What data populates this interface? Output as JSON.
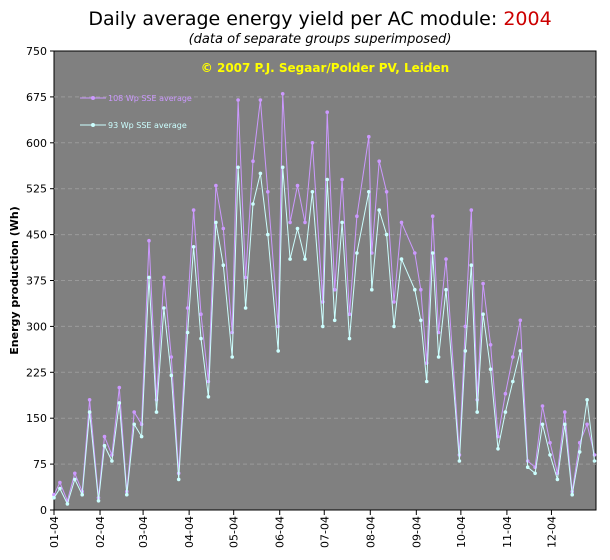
{
  "header": {
    "title_prefix": "Daily average energy yield per AC module: ",
    "title_year": "2004",
    "subtitle": "(data of separate groups superimposed)"
  },
  "chart_data": {
    "type": "line",
    "copyright": "© 2007 P.J. Segaar/Polder PV, Leiden",
    "ylabel": "Energy production (Wh)",
    "xlabel": "",
    "ylim": [
      0,
      750
    ],
    "yticks": [
      0,
      75,
      150,
      225,
      300,
      375,
      450,
      525,
      600,
      675,
      750
    ],
    "xlim": [
      1,
      366
    ],
    "month_ticks": [
      {
        "label": "01-04",
        "day": 1
      },
      {
        "label": "02-04",
        "day": 32
      },
      {
        "label": "03-04",
        "day": 61
      },
      {
        "label": "04-04",
        "day": 92
      },
      {
        "label": "05-04",
        "day": 122
      },
      {
        "label": "06-04",
        "day": 153
      },
      {
        "label": "07-04",
        "day": 183
      },
      {
        "label": "08-04",
        "day": 214
      },
      {
        "label": "09-04",
        "day": 245
      },
      {
        "label": "10-04",
        "day": 275
      },
      {
        "label": "11-04",
        "day": 306
      },
      {
        "label": "12-04",
        "day": 336
      }
    ],
    "grid": true,
    "legend_position": "top-left",
    "colors": {
      "plot_bg": "#808080",
      "gridline": "#9a9a9a",
      "series_108": "#cc99ff",
      "series_93": "#ccffff",
      "copyright_text": "#ffff00",
      "title_year": "#cc0000"
    },
    "series": [
      {
        "name": "108 Wp SSE average",
        "color": "#cc99ff",
        "x": [
          1,
          5,
          10,
          15,
          20,
          25,
          31,
          35,
          40,
          45,
          50,
          55,
          60,
          65,
          70,
          75,
          80,
          85,
          91,
          95,
          100,
          105,
          110,
          115,
          121,
          125,
          130,
          135,
          140,
          145,
          152,
          155,
          160,
          165,
          170,
          175,
          182,
          185,
          190,
          195,
          200,
          205,
          213,
          215,
          220,
          225,
          230,
          235,
          244,
          248,
          252,
          256,
          260,
          265,
          274,
          278,
          282,
          286,
          290,
          295,
          300,
          305,
          310,
          315,
          320,
          325,
          330,
          335,
          340,
          345,
          350,
          355,
          360,
          365
        ],
        "values": [
          25,
          45,
          15,
          60,
          30,
          180,
          20,
          120,
          90,
          200,
          30,
          160,
          140,
          440,
          180,
          380,
          250,
          60,
          330,
          490,
          320,
          210,
          530,
          460,
          290,
          670,
          380,
          570,
          670,
          520,
          300,
          680,
          470,
          530,
          470,
          600,
          340,
          650,
          360,
          540,
          320,
          480,
          610,
          420,
          570,
          520,
          340,
          470,
          420,
          360,
          240,
          480,
          290,
          410,
          90,
          300,
          490,
          180,
          370,
          270,
          120,
          190,
          250,
          310,
          80,
          70,
          170,
          110,
          60,
          160,
          30,
          110,
          140,
          90
        ]
      },
      {
        "name": "93 Wp SSE average",
        "color": "#ccffff",
        "x": [
          1,
          5,
          10,
          15,
          20,
          25,
          31,
          35,
          40,
          45,
          50,
          55,
          60,
          65,
          70,
          75,
          80,
          85,
          91,
          95,
          100,
          105,
          110,
          115,
          121,
          125,
          130,
          135,
          140,
          145,
          152,
          155,
          160,
          165,
          170,
          175,
          182,
          185,
          190,
          195,
          200,
          205,
          213,
          215,
          220,
          225,
          230,
          235,
          244,
          248,
          252,
          256,
          260,
          265,
          274,
          278,
          282,
          286,
          290,
          295,
          300,
          305,
          310,
          315,
          320,
          325,
          330,
          335,
          340,
          345,
          350,
          355,
          360,
          365
        ],
        "values": [
          20,
          35,
          10,
          50,
          25,
          160,
          15,
          105,
          80,
          175,
          25,
          140,
          120,
          380,
          160,
          330,
          220,
          50,
          290,
          430,
          280,
          185,
          470,
          400,
          250,
          560,
          330,
          500,
          550,
          450,
          260,
          560,
          410,
          460,
          410,
          520,
          300,
          540,
          310,
          470,
          280,
          420,
          520,
          360,
          490,
          450,
          300,
          410,
          360,
          310,
          210,
          420,
          250,
          360,
          80,
          260,
          400,
          160,
          320,
          230,
          100,
          160,
          210,
          260,
          70,
          60,
          140,
          90,
          50,
          140,
          25,
          95,
          180,
          80
        ]
      }
    ]
  }
}
